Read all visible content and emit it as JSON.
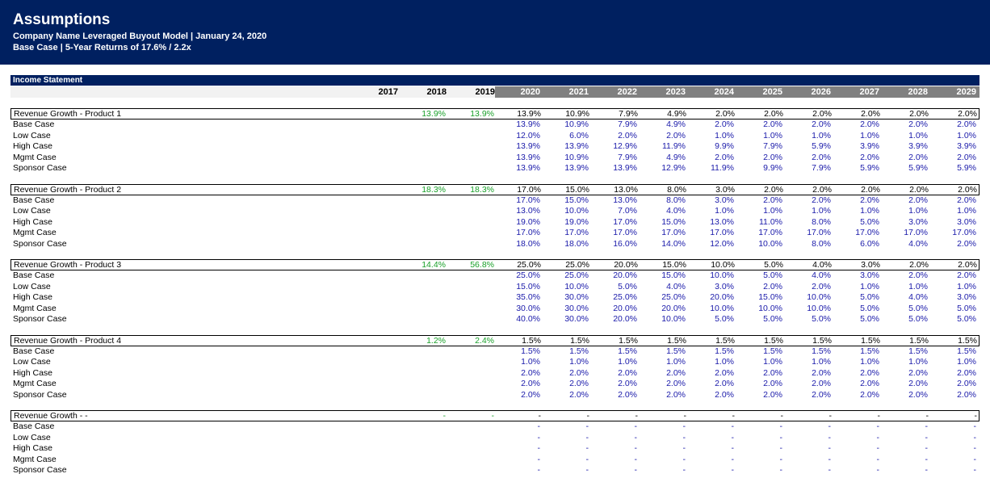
{
  "header": {
    "title": "Assumptions",
    "subtitle1": "Company Name Leveraged Buyout Model | January 24, 2020",
    "subtitle2": "Base Case | 5-Year Returns of 17.6%  / 2.2x"
  },
  "section": {
    "title": "Income Statement"
  },
  "years": {
    "historical": [
      "2017",
      "2018",
      "2019"
    ],
    "projected": [
      "2020",
      "2021",
      "2022",
      "2023",
      "2024",
      "2025",
      "2026",
      "2027",
      "2028",
      "2029"
    ]
  },
  "colors": {
    "header_bg": "#002060",
    "historical_text": "#1aa02a",
    "input_text": "#1a1aaa",
    "projected_header_bg": "#808080"
  },
  "blocks": [
    {
      "label": "Revenue Growth - Product 1",
      "hist": [
        "",
        "13.9%",
        "13.9%"
      ],
      "values": [
        "13.9%",
        "10.9%",
        "7.9%",
        "4.9%",
        "2.0%",
        "2.0%",
        "2.0%",
        "2.0%",
        "2.0%",
        "2.0%"
      ],
      "cases": [
        {
          "label": "Base Case",
          "values": [
            "13.9%",
            "10.9%",
            "7.9%",
            "4.9%",
            "2.0%",
            "2.0%",
            "2.0%",
            "2.0%",
            "2.0%",
            "2.0%"
          ]
        },
        {
          "label": "Low Case",
          "values": [
            "12.0%",
            "6.0%",
            "2.0%",
            "2.0%",
            "1.0%",
            "1.0%",
            "1.0%",
            "1.0%",
            "1.0%",
            "1.0%"
          ]
        },
        {
          "label": "High Case",
          "values": [
            "13.9%",
            "13.9%",
            "12.9%",
            "11.9%",
            "9.9%",
            "7.9%",
            "5.9%",
            "3.9%",
            "3.9%",
            "3.9%"
          ]
        },
        {
          "label": "Mgmt Case",
          "values": [
            "13.9%",
            "10.9%",
            "7.9%",
            "4.9%",
            "2.0%",
            "2.0%",
            "2.0%",
            "2.0%",
            "2.0%",
            "2.0%"
          ]
        },
        {
          "label": "Sponsor Case",
          "values": [
            "13.9%",
            "13.9%",
            "13.9%",
            "12.9%",
            "11.9%",
            "9.9%",
            "7.9%",
            "5.9%",
            "5.9%",
            "5.9%"
          ]
        }
      ]
    },
    {
      "label": "Revenue Growth - Product 2",
      "hist": [
        "",
        "18.3%",
        "18.3%"
      ],
      "values": [
        "17.0%",
        "15.0%",
        "13.0%",
        "8.0%",
        "3.0%",
        "2.0%",
        "2.0%",
        "2.0%",
        "2.0%",
        "2.0%"
      ],
      "cases": [
        {
          "label": "Base Case",
          "values": [
            "17.0%",
            "15.0%",
            "13.0%",
            "8.0%",
            "3.0%",
            "2.0%",
            "2.0%",
            "2.0%",
            "2.0%",
            "2.0%"
          ]
        },
        {
          "label": "Low Case",
          "values": [
            "13.0%",
            "10.0%",
            "7.0%",
            "4.0%",
            "1.0%",
            "1.0%",
            "1.0%",
            "1.0%",
            "1.0%",
            "1.0%"
          ]
        },
        {
          "label": "High Case",
          "values": [
            "19.0%",
            "19.0%",
            "17.0%",
            "15.0%",
            "13.0%",
            "11.0%",
            "8.0%",
            "5.0%",
            "3.0%",
            "3.0%"
          ]
        },
        {
          "label": "Mgmt Case",
          "values": [
            "17.0%",
            "17.0%",
            "17.0%",
            "17.0%",
            "17.0%",
            "17.0%",
            "17.0%",
            "17.0%",
            "17.0%",
            "17.0%"
          ]
        },
        {
          "label": "Sponsor Case",
          "values": [
            "18.0%",
            "18.0%",
            "16.0%",
            "14.0%",
            "12.0%",
            "10.0%",
            "8.0%",
            "6.0%",
            "4.0%",
            "2.0%"
          ]
        }
      ]
    },
    {
      "label": "Revenue Growth - Product 3",
      "hist": [
        "",
        "14.4%",
        "56.8%"
      ],
      "values": [
        "25.0%",
        "25.0%",
        "20.0%",
        "15.0%",
        "10.0%",
        "5.0%",
        "4.0%",
        "3.0%",
        "2.0%",
        "2.0%"
      ],
      "cases": [
        {
          "label": "Base Case",
          "values": [
            "25.0%",
            "25.0%",
            "20.0%",
            "15.0%",
            "10.0%",
            "5.0%",
            "4.0%",
            "3.0%",
            "2.0%",
            "2.0%"
          ]
        },
        {
          "label": "Low Case",
          "values": [
            "15.0%",
            "10.0%",
            "5.0%",
            "4.0%",
            "3.0%",
            "2.0%",
            "2.0%",
            "1.0%",
            "1.0%",
            "1.0%"
          ]
        },
        {
          "label": "High Case",
          "values": [
            "35.0%",
            "30.0%",
            "25.0%",
            "25.0%",
            "20.0%",
            "15.0%",
            "10.0%",
            "5.0%",
            "4.0%",
            "3.0%"
          ]
        },
        {
          "label": "Mgmt Case",
          "values": [
            "30.0%",
            "30.0%",
            "20.0%",
            "20.0%",
            "10.0%",
            "10.0%",
            "10.0%",
            "5.0%",
            "5.0%",
            "5.0%"
          ]
        },
        {
          "label": "Sponsor Case",
          "values": [
            "40.0%",
            "30.0%",
            "20.0%",
            "10.0%",
            "5.0%",
            "5.0%",
            "5.0%",
            "5.0%",
            "5.0%",
            "5.0%"
          ]
        }
      ]
    },
    {
      "label": "Revenue Growth - Product 4",
      "hist": [
        "",
        "1.2%",
        "2.4%"
      ],
      "values": [
        "1.5%",
        "1.5%",
        "1.5%",
        "1.5%",
        "1.5%",
        "1.5%",
        "1.5%",
        "1.5%",
        "1.5%",
        "1.5%"
      ],
      "cases": [
        {
          "label": "Base Case",
          "values": [
            "1.5%",
            "1.5%",
            "1.5%",
            "1.5%",
            "1.5%",
            "1.5%",
            "1.5%",
            "1.5%",
            "1.5%",
            "1.5%"
          ]
        },
        {
          "label": "Low Case",
          "values": [
            "1.0%",
            "1.0%",
            "1.0%",
            "1.0%",
            "1.0%",
            "1.0%",
            "1.0%",
            "1.0%",
            "1.0%",
            "1.0%"
          ]
        },
        {
          "label": "High Case",
          "values": [
            "2.0%",
            "2.0%",
            "2.0%",
            "2.0%",
            "2.0%",
            "2.0%",
            "2.0%",
            "2.0%",
            "2.0%",
            "2.0%"
          ]
        },
        {
          "label": "Mgmt Case",
          "values": [
            "2.0%",
            "2.0%",
            "2.0%",
            "2.0%",
            "2.0%",
            "2.0%",
            "2.0%",
            "2.0%",
            "2.0%",
            "2.0%"
          ]
        },
        {
          "label": "Sponsor Case",
          "values": [
            "2.0%",
            "2.0%",
            "2.0%",
            "2.0%",
            "2.0%",
            "2.0%",
            "2.0%",
            "2.0%",
            "2.0%",
            "2.0%"
          ]
        }
      ]
    },
    {
      "label": "Revenue Growth - -",
      "hist": [
        "",
        "-",
        "-"
      ],
      "values": [
        "-",
        "-",
        "-",
        "-",
        "-",
        "-",
        "-",
        "-",
        "-",
        "-"
      ],
      "cases": [
        {
          "label": "Base Case",
          "values": [
            "-",
            "-",
            "-",
            "-",
            "-",
            "-",
            "-",
            "-",
            "-",
            "-"
          ]
        },
        {
          "label": "Low Case",
          "values": [
            "-",
            "-",
            "-",
            "-",
            "-",
            "-",
            "-",
            "-",
            "-",
            "-"
          ]
        },
        {
          "label": "High Case",
          "values": [
            "-",
            "-",
            "-",
            "-",
            "-",
            "-",
            "-",
            "-",
            "-",
            "-"
          ]
        },
        {
          "label": "Mgmt Case",
          "values": [
            "-",
            "-",
            "-",
            "-",
            "-",
            "-",
            "-",
            "-",
            "-",
            "-"
          ]
        },
        {
          "label": "Sponsor Case",
          "values": [
            "-",
            "-",
            "-",
            "-",
            "-",
            "-",
            "-",
            "-",
            "-",
            "-"
          ]
        }
      ]
    }
  ]
}
